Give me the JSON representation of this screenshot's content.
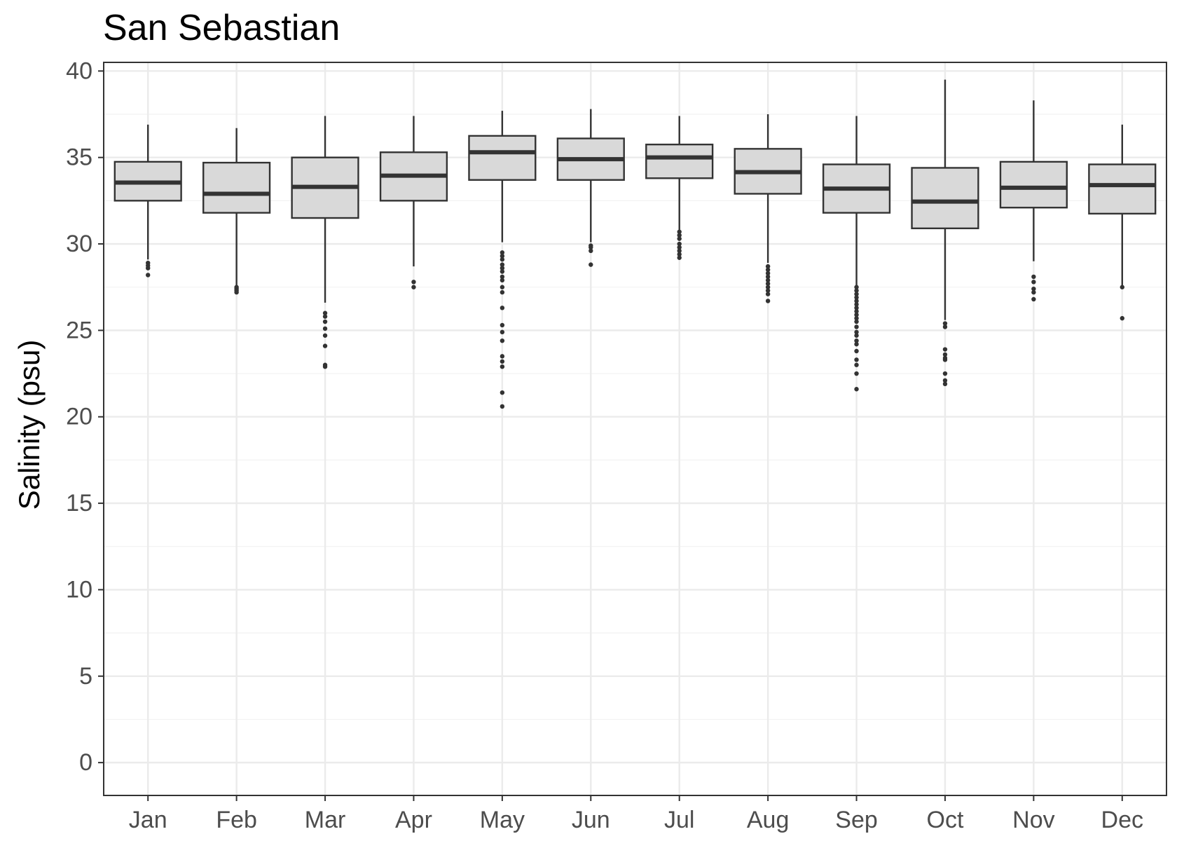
{
  "chart_data": {
    "type": "box",
    "title": "San Sebastian",
    "xlabel": "",
    "ylabel": "Salinity (psu)",
    "ylim": [
      -1.9,
      40.5
    ],
    "yticks": [
      0,
      5,
      10,
      15,
      20,
      25,
      30,
      35,
      40
    ],
    "grid": true,
    "categories": [
      "Jan",
      "Feb",
      "Mar",
      "Apr",
      "May",
      "Jun",
      "Jul",
      "Aug",
      "Sep",
      "Oct",
      "Nov",
      "Dec"
    ],
    "box_fill": "#d9d9d9",
    "line_color": "#333333",
    "boxes": [
      {
        "category": "Jan",
        "whisker_low": 29.1,
        "q1": 32.5,
        "median": 33.55,
        "q3": 34.75,
        "whisker_high": 36.9,
        "outliers": [
          28.9,
          28.75,
          28.6,
          28.2
        ]
      },
      {
        "category": "Feb",
        "whisker_low": 27.6,
        "q1": 31.8,
        "median": 32.9,
        "q3": 34.7,
        "whisker_high": 36.7,
        "outliers": [
          27.5,
          27.4,
          27.3,
          27.2
        ]
      },
      {
        "category": "Mar",
        "whisker_low": 26.6,
        "q1": 31.5,
        "median": 33.3,
        "q3": 35.0,
        "whisker_high": 37.4,
        "outliers": [
          26.0,
          25.8,
          25.5,
          25.1,
          24.7,
          24.1,
          23.0,
          22.9
        ]
      },
      {
        "category": "Apr",
        "whisker_low": 28.7,
        "q1": 32.5,
        "median": 33.95,
        "q3": 35.3,
        "whisker_high": 37.4,
        "outliers": [
          27.8,
          27.5
        ]
      },
      {
        "category": "May",
        "whisker_low": 30.1,
        "q1": 33.7,
        "median": 35.3,
        "q3": 36.25,
        "whisker_high": 37.7,
        "outliers": [
          29.5,
          29.3,
          29.1,
          28.8,
          28.6,
          28.4,
          28.1,
          27.9,
          27.5,
          27.2,
          26.3,
          25.3,
          24.9,
          24.4,
          23.5,
          23.2,
          22.9,
          21.4,
          20.6
        ]
      },
      {
        "category": "Jun",
        "whisker_low": 30.1,
        "q1": 33.7,
        "median": 34.9,
        "q3": 36.1,
        "whisker_high": 37.8,
        "outliers": [
          29.9,
          29.8,
          29.6,
          28.8
        ]
      },
      {
        "category": "Jul",
        "whisker_low": 30.8,
        "q1": 33.8,
        "median": 35.0,
        "q3": 35.75,
        "whisker_high": 37.4,
        "outliers": [
          30.7,
          30.5,
          30.3,
          30.0,
          29.8,
          29.6,
          29.4,
          29.2
        ]
      },
      {
        "category": "Aug",
        "whisker_low": 28.9,
        "q1": 32.9,
        "median": 34.15,
        "q3": 35.5,
        "whisker_high": 37.5,
        "outliers": [
          28.7,
          28.5,
          28.3,
          28.1,
          27.9,
          27.7,
          27.5,
          27.3,
          27.1,
          26.7
        ]
      },
      {
        "category": "Sep",
        "whisker_low": 27.6,
        "q1": 31.8,
        "median": 33.2,
        "q3": 34.6,
        "whisker_high": 37.4,
        "outliers": [
          27.5,
          27.3,
          27.1,
          26.9,
          26.7,
          26.5,
          26.3,
          26.1,
          25.9,
          25.7,
          25.5,
          25.2,
          24.9,
          24.7,
          24.4,
          24.2,
          23.8,
          23.3,
          23.0,
          22.5,
          21.6
        ]
      },
      {
        "category": "Oct",
        "whisker_low": 25.6,
        "q1": 30.9,
        "median": 32.45,
        "q3": 34.4,
        "whisker_high": 39.5,
        "outliers": [
          25.4,
          25.2,
          23.9,
          23.6,
          23.4,
          23.3,
          22.5,
          22.1,
          21.9
        ]
      },
      {
        "category": "Nov",
        "whisker_low": 29.0,
        "q1": 32.1,
        "median": 33.25,
        "q3": 34.75,
        "whisker_high": 38.3,
        "outliers": [
          28.1,
          27.8,
          27.4,
          27.2,
          26.8
        ]
      },
      {
        "category": "Dec",
        "whisker_low": 27.6,
        "q1": 31.75,
        "median": 33.4,
        "q3": 34.6,
        "whisker_high": 36.9,
        "outliers": [
          27.5,
          25.7
        ]
      }
    ]
  }
}
